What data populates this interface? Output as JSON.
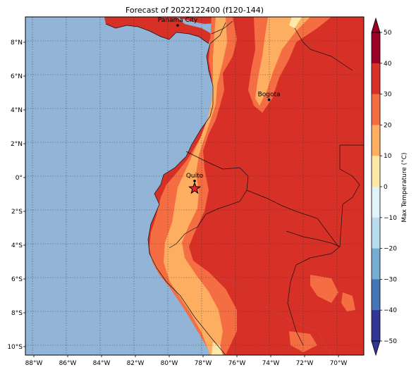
{
  "title": "Forecast of 2022122400 (f120-144)",
  "map": {
    "lon_range": [
      -88.5,
      -68.5
    ],
    "lat_range": [
      -10.5,
      9.5
    ],
    "lon_ticks": [
      {
        "value": -88,
        "label": "88°W"
      },
      {
        "value": -86,
        "label": "86°W"
      },
      {
        "value": -84,
        "label": "84°W"
      },
      {
        "value": -82,
        "label": "82°W"
      },
      {
        "value": -80,
        "label": "80°W"
      },
      {
        "value": -78,
        "label": "78°W"
      },
      {
        "value": -76,
        "label": "76°W"
      },
      {
        "value": -74,
        "label": "74°W"
      },
      {
        "value": -72,
        "label": "72°W"
      },
      {
        "value": -70,
        "label": "70°W"
      }
    ],
    "lat_ticks": [
      {
        "value": 8,
        "label": "8°N"
      },
      {
        "value": 6,
        "label": "6°N"
      },
      {
        "value": 4,
        "label": "4°N"
      },
      {
        "value": 2,
        "label": "2°N"
      },
      {
        "value": 0,
        "label": "0°"
      },
      {
        "value": -2,
        "label": "2°S"
      },
      {
        "value": -4,
        "label": "4°S"
      },
      {
        "value": -6,
        "label": "6°S"
      },
      {
        "value": -8,
        "label": "8°S"
      },
      {
        "value": -10,
        "label": "10°S"
      }
    ],
    "ocean_color": "#92b4d6",
    "gridlines": true,
    "cities": [
      {
        "name": "Panama City",
        "lon": -79.5,
        "lat": 9.0
      },
      {
        "name": "Bogota",
        "lon": -74.1,
        "lat": 4.6
      },
      {
        "name": "Quito",
        "lon": -78.5,
        "lat": -0.2
      }
    ],
    "marker": {
      "lon": -78.5,
      "lat": -0.65,
      "shape": "star-icon",
      "color": "#e8272b"
    }
  },
  "colorbar": {
    "label": "Max Temperature (°C)",
    "ticks": [
      "50",
      "40",
      "30",
      "20",
      "10",
      "0",
      "−10",
      "−20",
      "−30",
      "−40",
      "−50"
    ],
    "bands": [
      {
        "from": 40,
        "to": 50,
        "color": "#9b0026"
      },
      {
        "from": 30,
        "to": 40,
        "color": "#d73027"
      },
      {
        "from": 20,
        "to": 30,
        "color": "#f46d43"
      },
      {
        "from": 10,
        "to": 20,
        "color": "#fdae61"
      },
      {
        "from": 0,
        "to": 10,
        "color": "#fee8a8"
      },
      {
        "from": -10,
        "to": 0,
        "color": "#e0f3f8"
      },
      {
        "from": -20,
        "to": -10,
        "color": "#b8dcec"
      },
      {
        "from": -30,
        "to": -20,
        "color": "#74add1"
      },
      {
        "from": -40,
        "to": -30,
        "color": "#4575b4"
      },
      {
        "from": -50,
        "to": -40,
        "color": "#313695"
      }
    ]
  }
}
